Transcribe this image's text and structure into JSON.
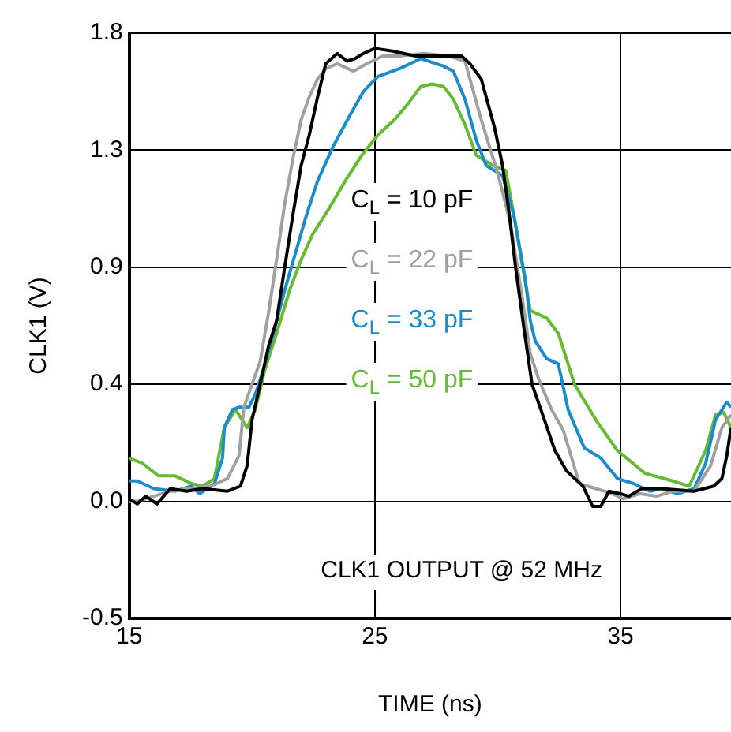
{
  "chart_data": {
    "type": "line",
    "xlabel": "TIME (ns)",
    "ylabel": "CLK1 (V)",
    "xlim": [
      15,
      39.5
    ],
    "xticks": [
      15,
      25,
      35
    ],
    "ylim": [
      -0.5,
      1.8
    ],
    "yticks": [
      {
        "value": -0.5,
        "label": "-0.5"
      },
      {
        "value": -0.04,
        "label": "0.0"
      },
      {
        "value": 0.42,
        "label": "0.4"
      },
      {
        "value": 0.88,
        "label": "0.9"
      },
      {
        "value": 1.34,
        "label": "1.3"
      },
      {
        "value": 1.8,
        "label": "1.8"
      }
    ],
    "grid": true,
    "legend": "center",
    "marker": "none",
    "line_style": "solid",
    "annotations": [
      "CLK1 OUTPUT @ 52 MHz"
    ],
    "series": [
      {
        "name": "C$_{L}$ = 10 pF",
        "color": "#000000",
        "x": [
          15,
          15.33,
          15.67,
          16.13,
          16.67,
          17.33,
          18,
          19,
          19.53,
          19.8,
          20,
          20.33,
          20.67,
          21,
          21.33,
          21.67,
          22,
          22.33,
          22.67,
          23,
          23.47,
          23.87,
          24.2,
          24.53,
          25,
          25.67,
          26.67,
          27.67,
          28.53,
          28.87,
          29.33,
          29.87,
          30.2,
          30.47,
          30.73,
          31.07,
          31.4,
          31.87,
          32.33,
          32.8,
          33.47,
          33.87,
          34.2,
          34.53,
          35,
          35.33,
          35.87,
          36.67,
          38,
          38.8,
          39.13,
          39.33,
          39.5
        ],
        "values": [
          -0.03,
          -0.05,
          -0.02,
          -0.05,
          0.01,
          0.0,
          0.01,
          0.0,
          0.02,
          0.1,
          0.28,
          0.42,
          0.57,
          0.67,
          0.88,
          1.09,
          1.28,
          1.4,
          1.55,
          1.68,
          1.72,
          1.69,
          1.7,
          1.72,
          1.74,
          1.73,
          1.71,
          1.71,
          1.71,
          1.68,
          1.62,
          1.43,
          1.28,
          1.09,
          0.88,
          0.64,
          0.42,
          0.29,
          0.16,
          0.08,
          0.02,
          -0.06,
          -0.06,
          0.0,
          -0.01,
          -0.02,
          0.01,
          0.01,
          0.0,
          0.02,
          0.05,
          0.14,
          0.25
        ]
      },
      {
        "name": "C$_{L}$ = 22 pF",
        "color": "#a0a0a0",
        "x": [
          15,
          15.33,
          16,
          16.67,
          17.33,
          18.33,
          19,
          19.47,
          19.67,
          20,
          20.33,
          20.67,
          21,
          21.33,
          21.67,
          22,
          22.33,
          22.67,
          23,
          23.47,
          24.13,
          24.67,
          25.33,
          26,
          27,
          28,
          28.67,
          29.33,
          30,
          30.53,
          31,
          31.33,
          31.67,
          32.2,
          32.67,
          33.33,
          34,
          34.67,
          35.13,
          35.8,
          36.47,
          37.13,
          38,
          38.67,
          39.13,
          39.5
        ],
        "values": [
          -0.04,
          -0.04,
          -0.02,
          0.0,
          0.01,
          0.02,
          0.05,
          0.14,
          0.33,
          0.42,
          0.51,
          0.7,
          0.91,
          1.13,
          1.31,
          1.46,
          1.55,
          1.62,
          1.66,
          1.68,
          1.65,
          1.68,
          1.71,
          1.71,
          1.72,
          1.71,
          1.69,
          1.46,
          1.25,
          1.05,
          0.76,
          0.54,
          0.44,
          0.32,
          0.24,
          0.03,
          0.01,
          -0.01,
          -0.03,
          -0.01,
          -0.02,
          0.0,
          0.0,
          0.1,
          0.25,
          0.3
        ]
      },
      {
        "name": "C$_{L}$ = 33 pF",
        "color": "#1a8ccc",
        "x": [
          15,
          15.33,
          16,
          16.87,
          17.53,
          17.87,
          18.47,
          18.8,
          18.87,
          19.2,
          19.47,
          19.87,
          20.13,
          20.47,
          20.87,
          21.33,
          22.2,
          22.67,
          23.33,
          24,
          24.53,
          25.13,
          26,
          26.87,
          27.8,
          28.2,
          28.67,
          29.13,
          29.53,
          30.2,
          30.67,
          31.13,
          31.33,
          31.53,
          32,
          32.47,
          32.87,
          33.53,
          34.2,
          34.87,
          35.53,
          36.2,
          36.67,
          37.33,
          38,
          38.47,
          38.87,
          39.33,
          39.5
        ],
        "values": [
          0.04,
          0.04,
          0.01,
          0.0,
          0.02,
          -0.01,
          0.03,
          0.13,
          0.25,
          0.32,
          0.33,
          0.33,
          0.38,
          0.48,
          0.62,
          0.79,
          1.08,
          1.22,
          1.36,
          1.48,
          1.57,
          1.63,
          1.66,
          1.7,
          1.67,
          1.65,
          1.54,
          1.38,
          1.28,
          1.24,
          1.08,
          0.83,
          0.67,
          0.59,
          0.52,
          0.5,
          0.32,
          0.17,
          0.13,
          0.05,
          0.03,
          0.0,
          0.01,
          -0.01,
          0.01,
          0.11,
          0.28,
          0.35,
          0.33
        ]
      },
      {
        "name": "C$_{L}$ = 50 pF",
        "color": "#66bb33",
        "x": [
          15,
          15.53,
          16.2,
          16.87,
          17.53,
          18,
          18.47,
          18.87,
          19.33,
          19.8,
          20.13,
          20.53,
          21,
          21.53,
          22,
          22.47,
          23.13,
          23.8,
          24.47,
          25.13,
          25.8,
          26.33,
          26.87,
          27.33,
          27.8,
          28.2,
          28.67,
          29.13,
          29.8,
          30.33,
          30.67,
          31,
          31.33,
          32,
          32.47,
          33.13,
          34,
          34.87,
          36,
          37.13,
          37.8,
          38.47,
          38.87,
          39.2,
          39.5
        ],
        "values": [
          0.13,
          0.11,
          0.06,
          0.06,
          0.03,
          0.02,
          0.05,
          0.25,
          0.32,
          0.25,
          0.32,
          0.48,
          0.62,
          0.79,
          0.91,
          1.01,
          1.11,
          1.22,
          1.32,
          1.4,
          1.46,
          1.52,
          1.59,
          1.6,
          1.59,
          1.54,
          1.44,
          1.32,
          1.28,
          1.26,
          1.08,
          0.89,
          0.71,
          0.68,
          0.62,
          0.42,
          0.28,
          0.16,
          0.07,
          0.04,
          0.02,
          0.16,
          0.3,
          0.31,
          0.25
        ]
      }
    ]
  }
}
